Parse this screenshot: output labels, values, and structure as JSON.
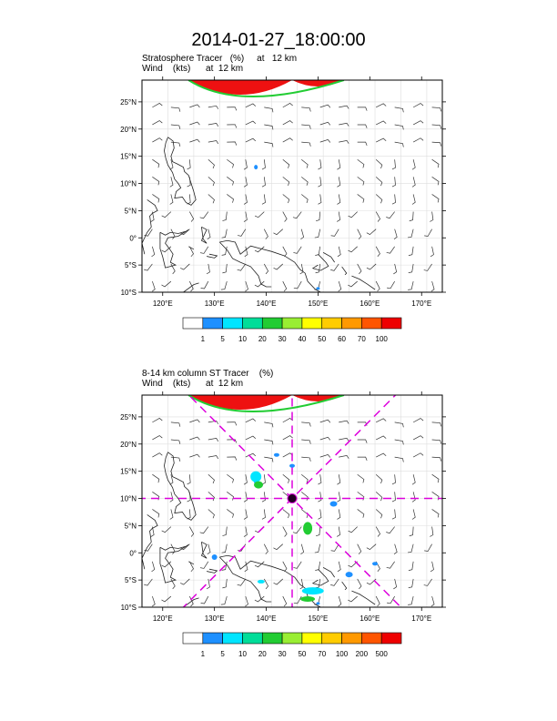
{
  "page_title": "2014-01-27_18:00:00",
  "panels": [
    {
      "line1": "Stratosphere Tracer   (%)     at   12 km",
      "line2": "Wind    (kts)      at  12 km",
      "colorbar_labels": [
        "1",
        "5",
        "10",
        "20",
        "30",
        "40",
        "50",
        "60",
        "70",
        "100"
      ],
      "colorbar_colors": [
        "#ffffff",
        "#1e90ff",
        "#00e5ff",
        "#00dd99",
        "#22cc33",
        "#99ee33",
        "#ffff00",
        "#ffcc00",
        "#ff9900",
        "#ff5500",
        "#ee0000"
      ]
    },
    {
      "line1": "8-14 km column ST Tracer    (%)",
      "line2": "Wind    (kts)      at  12 km",
      "colorbar_labels": [
        "1",
        "5",
        "10",
        "20",
        "30",
        "50",
        "70",
        "100",
        "200",
        "500"
      ],
      "colorbar_colors": [
        "#ffffff",
        "#1e90ff",
        "#00e5ff",
        "#00dd99",
        "#22cc33",
        "#99ee33",
        "#ffff00",
        "#ffcc00",
        "#ff9900",
        "#ff5500",
        "#ee0000"
      ]
    }
  ],
  "axes": {
    "lon_ticks": [
      "120°E",
      "130°E",
      "140°E",
      "150°E",
      "160°E",
      "170°E"
    ],
    "lat_ticks": [
      "25°N",
      "20°N",
      "15°N",
      "10°N",
      "5°N",
      "0°",
      "5°S",
      "10°S"
    ]
  },
  "chart_data": {
    "type": "map",
    "lon_range": [
      116,
      174
    ],
    "lat_range": [
      -10,
      29
    ],
    "grid": true,
    "cross_section_center": {
      "lon": 145,
      "lat": 10
    }
  }
}
